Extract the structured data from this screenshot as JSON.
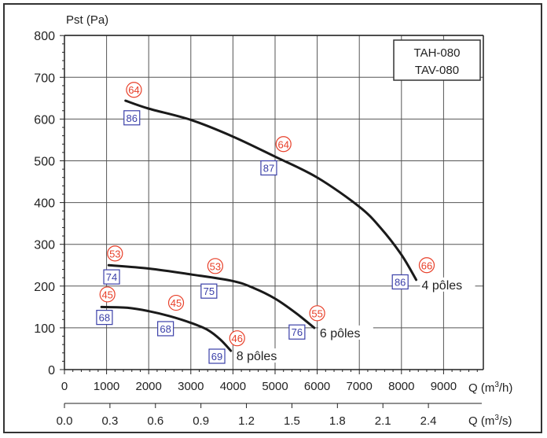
{
  "chart_data": {
    "type": "line",
    "title": "TAH-080 / TAV-080",
    "model_labels": [
      "TAH-080",
      "TAV-080"
    ],
    "ylabel": "Pst (Pa)",
    "xlabel": "Q (m3/h)",
    "xlabel_secondary": "Q (m3/s)",
    "xlim": [
      0,
      10000
    ],
    "ylim": [
      0,
      800
    ],
    "grid": true,
    "x_ticks": [
      0,
      1000,
      2000,
      3000,
      4000,
      5000,
      6000,
      7000,
      8000,
      9000
    ],
    "x_tick_labels": [
      "0",
      "1000",
      "2000",
      "3000",
      "4000",
      "5000",
      "6000",
      "7000",
      "8000",
      "9000"
    ],
    "x2_ticks": [
      0.0,
      0.3,
      0.6,
      0.9,
      1.2,
      1.5,
      1.8,
      2.1,
      2.4
    ],
    "x2_tick_labels": [
      "0.0",
      "0.3",
      "0.6",
      "0.9",
      "1.2",
      "1.5",
      "1.8",
      "2.1",
      "2.4"
    ],
    "y_ticks": [
      0,
      100,
      200,
      300,
      400,
      500,
      600,
      700,
      800
    ],
    "y_tick_labels": [
      "0",
      "100",
      "200",
      "300",
      "400",
      "500",
      "600",
      "700",
      "800"
    ],
    "series": [
      {
        "name": "4 pôles",
        "x": [
          1450,
          2000,
          3000,
          4000,
          5000,
          6000,
          7000,
          7500,
          8000,
          8350
        ],
        "y": [
          644,
          625,
          598,
          558,
          510,
          460,
          390,
          340,
          275,
          215
        ],
        "sound_power_dB": [
          {
            "x": 1650,
            "y": 670,
            "value": "64"
          },
          {
            "x": 5200,
            "y": 540,
            "value": "64"
          },
          {
            "x": 8600,
            "y": 250,
            "value": "66"
          }
        ],
        "efficiency_pct": [
          {
            "x": 1600,
            "y": 603,
            "value": "86"
          },
          {
            "x": 4850,
            "y": 483,
            "value": "87"
          },
          {
            "x": 7970,
            "y": 210,
            "value": "86"
          }
        ]
      },
      {
        "name": "6 pôles",
        "x": [
          1050,
          2000,
          3000,
          4000,
          4500,
          5000,
          5500,
          5930
        ],
        "y": [
          250,
          242,
          228,
          212,
          195,
          170,
          135,
          100
        ],
        "sound_power_dB": [
          {
            "x": 1200,
            "y": 278,
            "value": "53"
          },
          {
            "x": 3580,
            "y": 248,
            "value": "53"
          },
          {
            "x": 6000,
            "y": 135,
            "value": "55"
          }
        ],
        "efficiency_pct": [
          {
            "x": 1120,
            "y": 222,
            "value": "74"
          },
          {
            "x": 3430,
            "y": 188,
            "value": "75"
          },
          {
            "x": 5520,
            "y": 90,
            "value": "76"
          }
        ]
      },
      {
        "name": "8 pôles",
        "x": [
          880,
          1500,
          2000,
          2500,
          3000,
          3400,
          3700,
          3950
        ],
        "y": [
          150,
          148,
          140,
          128,
          112,
          95,
          72,
          45
        ],
        "sound_power_dB": [
          {
            "x": 1020,
            "y": 180,
            "value": "45"
          },
          {
            "x": 2650,
            "y": 160,
            "value": "45"
          },
          {
            "x": 4100,
            "y": 75,
            "value": "46"
          }
        ],
        "efficiency_pct": [
          {
            "x": 950,
            "y": 125,
            "value": "68"
          },
          {
            "x": 2400,
            "y": 98,
            "value": "68"
          },
          {
            "x": 3620,
            "y": 32,
            "value": "69"
          }
        ]
      }
    ],
    "legend": null
  },
  "labels": {
    "ylabel": "Pst (Pa)",
    "xlabel_q": "Q (m",
    "xlabel_h": "/h)",
    "xlabel_s": "/s)",
    "sup3": "3",
    "model_1": "TAH-080",
    "model_2": "TAV-080"
  },
  "colors": {
    "sound_marker": "#e8402a",
    "efficiency_marker": "#3a3fa8",
    "curve": "#1a1a1a",
    "grid": "#555555"
  }
}
